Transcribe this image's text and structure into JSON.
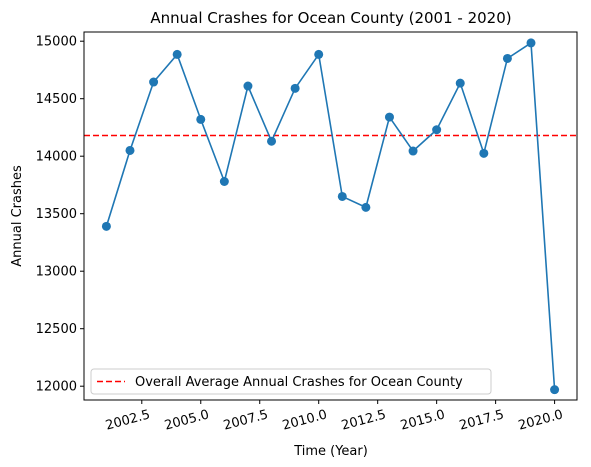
{
  "chart_data": {
    "type": "line",
    "title": "Annual Crashes for Ocean County (2001 - 2020)",
    "xlabel": "Time (Year)",
    "ylabel": "Annual Crashes",
    "xlim": [
      2000.05,
      2020.95
    ],
    "ylim": [
      11880,
      15080
    ],
    "x_ticks": [
      2002.5,
      2005.0,
      2007.5,
      2010.0,
      2012.5,
      2015.0,
      2017.5,
      2020.0
    ],
    "x_tick_labels": [
      "2002.5",
      "2005.0",
      "2007.5",
      "2010.0",
      "2012.5",
      "2015.0",
      "2017.5",
      "2020.0"
    ],
    "y_ticks": [
      12000,
      12500,
      13000,
      13500,
      14000,
      14500,
      15000
    ],
    "y_tick_labels": [
      "12000",
      "12500",
      "13000",
      "13500",
      "14000",
      "14500",
      "15000"
    ],
    "grid": false,
    "legend_position": "lower-left",
    "series": [
      {
        "color": "#1f77b4",
        "marker": "circle",
        "x": [
          2001,
          2002,
          2003,
          2004,
          2005,
          2006,
          2007,
          2008,
          2009,
          2010,
          2011,
          2012,
          2013,
          2014,
          2015,
          2016,
          2017,
          2018,
          2019,
          2020
        ],
        "y": [
          13390,
          14050,
          14645,
          14885,
          14320,
          13780,
          14610,
          14130,
          14590,
          14885,
          13650,
          13555,
          14340,
          14045,
          14230,
          14635,
          14025,
          14850,
          14985,
          11970
        ]
      }
    ],
    "reference_line": {
      "name": "Overall Average Annual Crashes for Ocean County",
      "value": 14180,
      "color": "#ff0000",
      "style": "dashed"
    }
  }
}
